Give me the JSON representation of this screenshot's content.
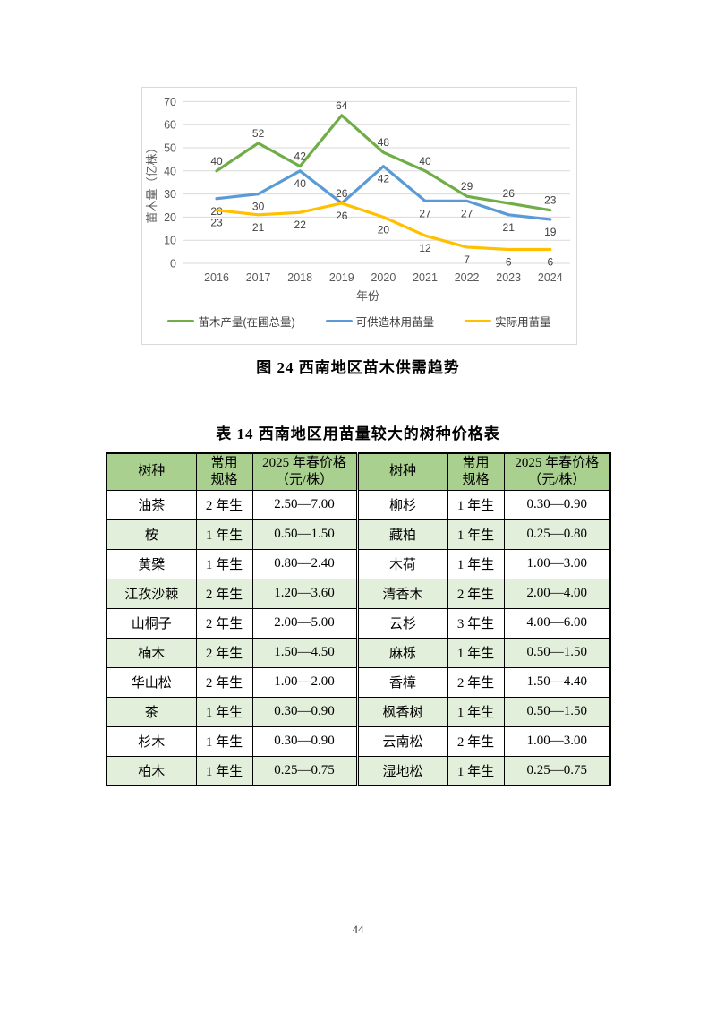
{
  "figure": {
    "caption": "图 24  西南地区苗木供需趋势"
  },
  "chart_data": {
    "type": "line",
    "x": [
      "2016",
      "2017",
      "2018",
      "2019",
      "2020",
      "2021",
      "2022",
      "2023",
      "2024"
    ],
    "xlabel": "年份",
    "ylabel": "苗木量（亿株）",
    "ylim": [
      0,
      70
    ],
    "ytick_step": 10,
    "grid": true,
    "legend_position": "bottom",
    "gridline_color": "#d9d9d9",
    "series": [
      {
        "name": "苗木产量(在圃总量)",
        "color": "#70AD47",
        "values": [
          40,
          52,
          42,
          64,
          48,
          40,
          29,
          26,
          23
        ],
        "label_position": "above",
        "label_exceptions": {}
      },
      {
        "name": "可供造林用苗量",
        "color": "#5B9BD5",
        "values": [
          28,
          30,
          40,
          26,
          42,
          27,
          27,
          21,
          19
        ],
        "label_position": "below",
        "label_exceptions": {
          "3": "above"
        }
      },
      {
        "name": "实际用苗量",
        "color": "#FFC000",
        "values": [
          23,
          21,
          22,
          26,
          20,
          12,
          7,
          6,
          6
        ],
        "label_position": "below",
        "label_exceptions": {}
      }
    ]
  },
  "table": {
    "caption": "表 14  西南地区用苗量较大的树种价格表",
    "headers": [
      "树种",
      "常用\n规格",
      "2025 年春价格\n（元/株）",
      "树种",
      "常用\n规格",
      "2025 年春价格\n（元/株）"
    ],
    "rows": [
      [
        "油茶",
        "2 年生",
        "2.50—7.00",
        "柳杉",
        "1 年生",
        "0.30—0.90"
      ],
      [
        "桉",
        "1 年生",
        "0.50—1.50",
        "藏柏",
        "1 年生",
        "0.25—0.80"
      ],
      [
        "黄檗",
        "1 年生",
        "0.80—2.40",
        "木荷",
        "1 年生",
        "1.00—3.00"
      ],
      [
        "江孜沙棘",
        "2 年生",
        "1.20—3.60",
        "清香木",
        "2 年生",
        "2.00—4.00"
      ],
      [
        "山桐子",
        "2 年生",
        "2.00—5.00",
        "云杉",
        "3 年生",
        "4.00—6.00"
      ],
      [
        "楠木",
        "2 年生",
        "1.50—4.50",
        "麻栎",
        "1 年生",
        "0.50—1.50"
      ],
      [
        "华山松",
        "2 年生",
        "1.00—2.00",
        "香樟",
        "2 年生",
        "1.50—4.40"
      ],
      [
        "茶",
        "1 年生",
        "0.30—0.90",
        "枫香树",
        "1 年生",
        "0.50—1.50"
      ],
      [
        "杉木",
        "1 年生",
        "0.30—0.90",
        "云南松",
        "2 年生",
        "1.00—3.00"
      ],
      [
        "柏木",
        "1 年生",
        "0.25—0.75",
        "湿地松",
        "1 年生",
        "0.25—0.75"
      ]
    ],
    "colors": {
      "header_bg": "#A9D08E",
      "alt_row_bg": "#E2EFDA"
    }
  },
  "page": {
    "number": "44"
  }
}
